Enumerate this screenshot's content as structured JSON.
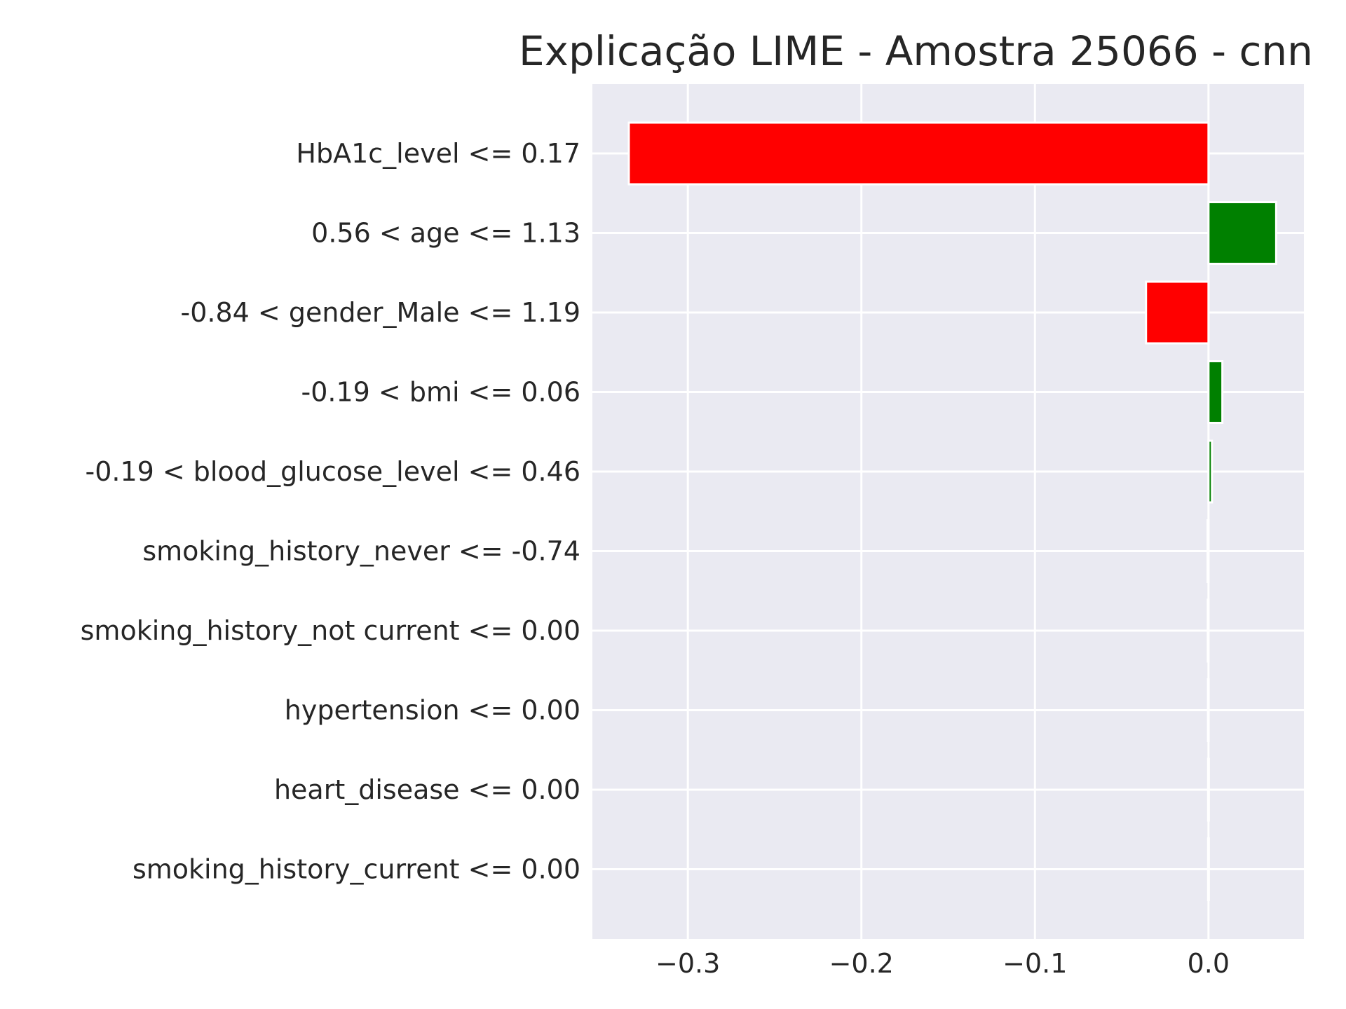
{
  "chart_data": {
    "type": "bar",
    "orientation": "horizontal",
    "title": "Explicação LIME - Amostra 25066 - cnn",
    "xlabel": "",
    "ylabel": "",
    "xlim": [
      -0.355,
      0.055
    ],
    "xticks": [
      -0.3,
      -0.2,
      -0.1,
      0.0
    ],
    "xtick_labels": [
      "−0.3",
      "−0.2",
      "−0.1",
      "0.0"
    ],
    "grid": true,
    "positive_color": "#008000",
    "negative_color": "#ff0000",
    "background_color": "#eaeaf2",
    "categories": [
      "HbA1c_level <= 0.17",
      "0.56 < age <= 1.13",
      "-0.84 < gender_Male <= 1.19",
      "-0.19 < bmi <= 0.06",
      "-0.19 < blood_glucose_level <= 0.46",
      "smoking_history_never <= -0.74",
      "smoking_history_not current <= 0.00",
      "hypertension <= 0.00",
      "heart_disease <= 0.00",
      "smoking_history_current <= 0.00"
    ],
    "values": [
      -0.334,
      0.039,
      -0.036,
      0.008,
      0.002,
      -0.0005,
      -0.0004,
      -0.0003,
      -0.0002,
      -0.0002
    ]
  }
}
